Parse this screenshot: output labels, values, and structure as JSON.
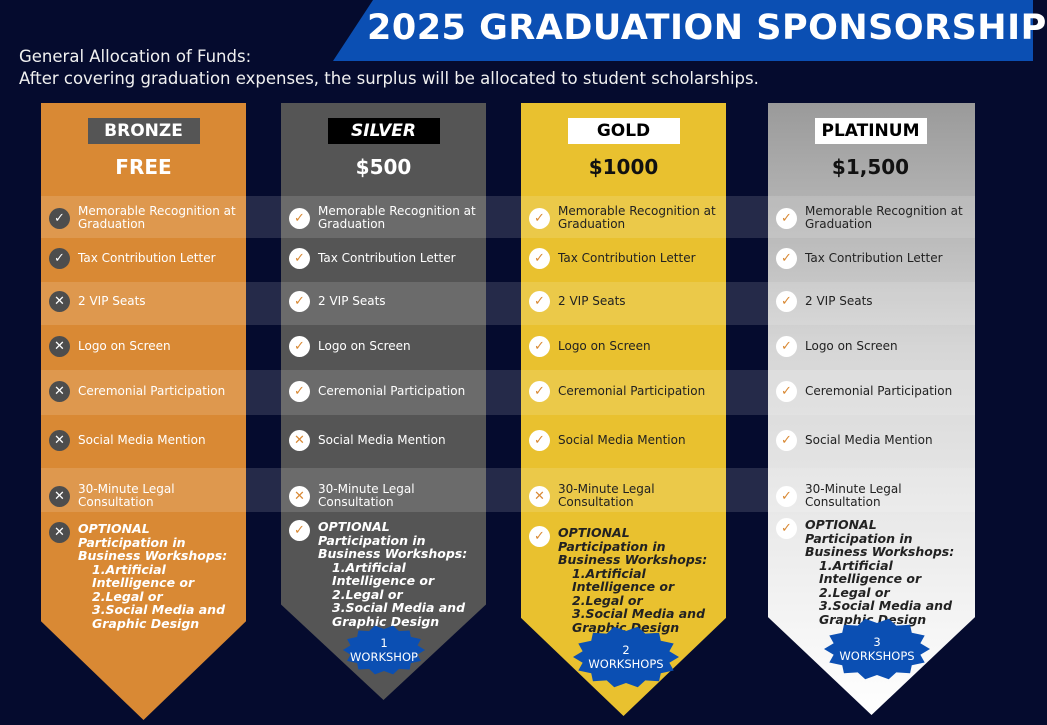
{
  "title": "2025 GRADUATION SPONSORSHIP",
  "intro": {
    "line1": "General Allocation of Funds:",
    "line2": "After covering graduation expenses, the surplus will be allocated to student scholarships."
  },
  "colors": {
    "background": "#050b2e",
    "banner": "#0b4fb3",
    "bronze": "#d98934",
    "silver": "#555555",
    "gold": "#e9c12f",
    "platinum": "#d6d6d6"
  },
  "benefits": [
    "Memorable Recognition at Graduation",
    "Tax Contribution Letter",
    "2 VIP Seats",
    "Logo on Screen",
    "Ceremonial Participation",
    "Social Media Mention",
    "30-Minute Legal Consultation"
  ],
  "optional": {
    "heading": "OPTIONAL Participation in Business Workshops:",
    "items": [
      "1.Artificial Intelligence or",
      "2.Legal or",
      "3.Social Media and Graphic Design"
    ]
  },
  "tiers": [
    {
      "name": "BRONZE",
      "price": "FREE",
      "included": [
        true,
        true,
        false,
        false,
        false,
        false,
        false
      ],
      "optional_included": false,
      "badge_num": "",
      "badge_label": ""
    },
    {
      "name": "SILVER",
      "price": "$500",
      "included": [
        true,
        true,
        true,
        true,
        true,
        false,
        false
      ],
      "optional_included": true,
      "badge_num": "1",
      "badge_label": "WORKSHOP"
    },
    {
      "name": "GOLD",
      "price": "$1000",
      "included": [
        true,
        true,
        true,
        true,
        true,
        true,
        false
      ],
      "optional_included": true,
      "badge_num": "2",
      "badge_label": "WORKSHOPS"
    },
    {
      "name": "PLATINUM",
      "price": "$1,500",
      "included": [
        true,
        true,
        true,
        true,
        true,
        true,
        true
      ],
      "optional_included": true,
      "badge_num": "3",
      "badge_label": "WORKSHOPS"
    }
  ],
  "icons": {
    "included": "check-icon",
    "excluded": "x-icon"
  }
}
